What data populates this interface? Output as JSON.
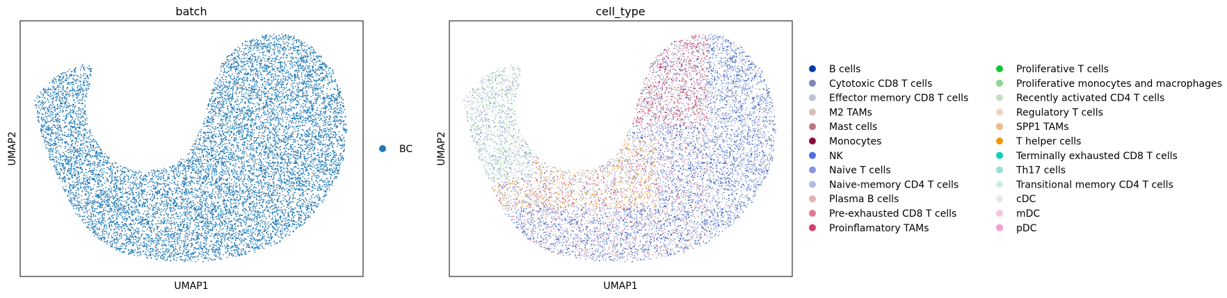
{
  "chart_data": [
    {
      "type": "scatter",
      "title": "batch",
      "xlabel": "UMAP1",
      "ylabel": "UMAP2",
      "xticks": [],
      "yticks": [],
      "legend_position": "right",
      "series": [
        {
          "name": "BC",
          "color": "#1f77b4"
        }
      ]
    },
    {
      "type": "scatter",
      "title": "cell_type",
      "xlabel": "UMAP1",
      "ylabel": "UMAP2",
      "xticks": [],
      "yticks": [],
      "legend_position": "right",
      "legend_columns": 2,
      "series": [
        {
          "name": "B cells",
          "color": "#023fa5"
        },
        {
          "name": "Cytotoxic CD8 T cells",
          "color": "#7d87b9"
        },
        {
          "name": "Effector memory CD8 T cells",
          "color": "#bec1d4"
        },
        {
          "name": "M2 TAMs",
          "color": "#d6bcc0"
        },
        {
          "name": "Mast cells",
          "color": "#bb7784"
        },
        {
          "name": "Monocytes",
          "color": "#8e063b"
        },
        {
          "name": "NK",
          "color": "#4a6fe3"
        },
        {
          "name": "Naive T cells",
          "color": "#8595e1"
        },
        {
          "name": "Naive-memory CD4 T cells",
          "color": "#b5bbe3"
        },
        {
          "name": "Plasma B cells",
          "color": "#e6afb9"
        },
        {
          "name": "Pre-exhausted CD8 T cells",
          "color": "#e07b91"
        },
        {
          "name": "Proinflamatory TAMs",
          "color": "#d33f6a"
        },
        {
          "name": "Proliferative T cells",
          "color": "#11c638"
        },
        {
          "name": "Proliferative monocytes and macrophages",
          "color": "#8dd593"
        },
        {
          "name": "Recently activated CD4 T cells",
          "color": "#c6dec7"
        },
        {
          "name": "Regulatory T cells",
          "color": "#ead3c6"
        },
        {
          "name": "SPP1 TAMs",
          "color": "#f0b98d"
        },
        {
          "name": "T helper cells",
          "color": "#ef9708"
        },
        {
          "name": "Terminally exhausted CD8 T cells",
          "color": "#0fcfc0"
        },
        {
          "name": "Th17 cells",
          "color": "#9cded6"
        },
        {
          "name": "Transitional memory CD4 T cells",
          "color": "#d5eae7"
        },
        {
          "name": "cDC",
          "color": "#f3e1eb"
        },
        {
          "name": "mDC",
          "color": "#f6c4e1"
        },
        {
          "name": "pDC",
          "color": "#f79cd4"
        }
      ]
    }
  ]
}
